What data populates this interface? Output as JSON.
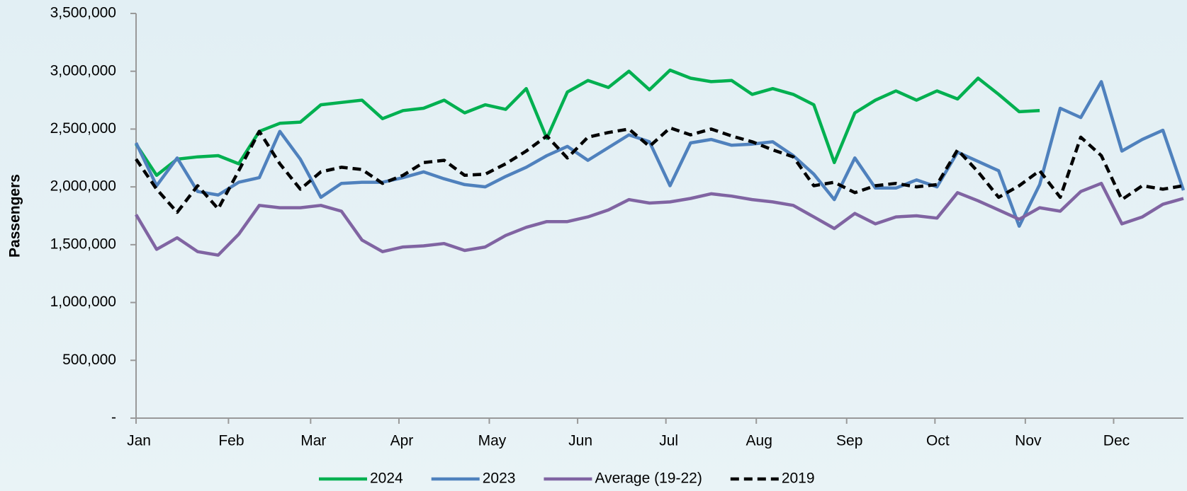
{
  "chart_data": {
    "type": "line",
    "y_label": "Passengers",
    "x": [
      0,
      1,
      2,
      3,
      4,
      5,
      6,
      7,
      8,
      9,
      10,
      11,
      12,
      13,
      14,
      15,
      16,
      17,
      18,
      19,
      20,
      21,
      22,
      23,
      24,
      25,
      26,
      27,
      28,
      29,
      30,
      31,
      32,
      33,
      34,
      35,
      36,
      37,
      38,
      39,
      40,
      41,
      42,
      43,
      44,
      45,
      46,
      47,
      48,
      49,
      50,
      51
    ],
    "xlim": [
      0,
      51
    ],
    "xticks": [
      {
        "value": 0,
        "label": "Jan"
      },
      {
        "value": 4.5,
        "label": "Feb"
      },
      {
        "value": 8.5,
        "label": "Mar"
      },
      {
        "value": 12.8,
        "label": "Apr"
      },
      {
        "value": 17.2,
        "label": "May"
      },
      {
        "value": 21.5,
        "label": "Jun"
      },
      {
        "value": 25.8,
        "label": "Jul"
      },
      {
        "value": 30.2,
        "label": "Aug"
      },
      {
        "value": 34.6,
        "label": "Sep"
      },
      {
        "value": 38.9,
        "label": "Oct"
      },
      {
        "value": 43.3,
        "label": "Nov"
      },
      {
        "value": 47.6,
        "label": "Dec"
      }
    ],
    "ylim": [
      0,
      3500000
    ],
    "yticks": [
      {
        "value": 0,
        "label": "-"
      },
      {
        "value": 500000,
        "label": "500,000"
      },
      {
        "value": 1000000,
        "label": "1,000,000"
      },
      {
        "value": 1500000,
        "label": "1,500,000"
      },
      {
        "value": 2000000,
        "label": "2,000,000"
      },
      {
        "value": 2500000,
        "label": "2,500,000"
      },
      {
        "value": 3000000,
        "label": "3,000,000"
      },
      {
        "value": 3500000,
        "label": "3,500,000"
      }
    ],
    "legend": "bottom",
    "series": [
      {
        "name": "2024",
        "color": "#00b050",
        "values": [
          2370000,
          2100000,
          2240000,
          2260000,
          2270000,
          2200000,
          2480000,
          2550000,
          2560000,
          2710000,
          2730000,
          2750000,
          2590000,
          2660000,
          2680000,
          2750000,
          2640000,
          2710000,
          2670000,
          2850000,
          2420000,
          2820000,
          2920000,
          2860000,
          3000000,
          2840000,
          3010000,
          2940000,
          2910000,
          2920000,
          2800000,
          2850000,
          2800000,
          2710000,
          2210000,
          2640000,
          2750000,
          2830000,
          2750000,
          2830000,
          2760000,
          2940000,
          2800000,
          2650000,
          2660000,
          null,
          null,
          null,
          null,
          null,
          null,
          null
        ]
      },
      {
        "name": "2023",
        "color": "#4f81bd",
        "values": [
          2380000,
          2010000,
          2250000,
          1960000,
          1930000,
          2040000,
          2080000,
          2480000,
          2240000,
          1910000,
          2030000,
          2040000,
          2040000,
          2080000,
          2130000,
          2070000,
          2020000,
          2000000,
          2090000,
          2170000,
          2270000,
          2350000,
          2230000,
          2340000,
          2450000,
          2390000,
          2010000,
          2380000,
          2410000,
          2360000,
          2370000,
          2390000,
          2270000,
          2110000,
          1890000,
          2250000,
          1990000,
          1990000,
          2060000,
          2000000,
          2300000,
          2220000,
          2140000,
          1660000,
          2020000,
          2680000,
          2600000,
          2910000,
          2310000,
          2410000,
          2490000,
          1970000
        ]
      },
      {
        "name": "Average (19-22)",
        "color": "#8064a2",
        "values": [
          1760000,
          1460000,
          1560000,
          1440000,
          1410000,
          1590000,
          1840000,
          1820000,
          1820000,
          1840000,
          1790000,
          1540000,
          1440000,
          1480000,
          1490000,
          1510000,
          1450000,
          1480000,
          1580000,
          1650000,
          1700000,
          1700000,
          1740000,
          1800000,
          1890000,
          1860000,
          1870000,
          1900000,
          1940000,
          1920000,
          1890000,
          1870000,
          1840000,
          1740000,
          1640000,
          1770000,
          1680000,
          1740000,
          1750000,
          1730000,
          1950000,
          1880000,
          1800000,
          1720000,
          1820000,
          1790000,
          1960000,
          2030000,
          1680000,
          1740000,
          1850000,
          1900000
        ]
      },
      {
        "name": "2019",
        "color": "#000000",
        "dashed": true,
        "values": [
          2240000,
          1980000,
          1780000,
          2010000,
          1810000,
          2140000,
          2480000,
          2200000,
          1980000,
          2130000,
          2170000,
          2150000,
          2030000,
          2100000,
          2210000,
          2230000,
          2100000,
          2110000,
          2200000,
          2310000,
          2440000,
          2250000,
          2430000,
          2470000,
          2500000,
          2350000,
          2510000,
          2450000,
          2500000,
          2440000,
          2390000,
          2320000,
          2260000,
          2010000,
          2040000,
          1950000,
          2010000,
          2030000,
          2000000,
          2020000,
          2320000,
          2130000,
          1910000,
          2010000,
          2140000,
          1910000,
          2430000,
          2270000,
          1890000,
          2010000,
          1980000,
          2010000
        ]
      }
    ]
  }
}
